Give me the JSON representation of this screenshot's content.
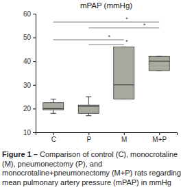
{
  "chart_data": {
    "type": "box",
    "title": "mPAP (mmHg)",
    "categories": [
      "C",
      "P",
      "M",
      "M+P"
    ],
    "min": [
      18,
      17,
      24,
      36
    ],
    "q1": [
      19.5,
      18,
      24,
      36
    ],
    "median": [
      20,
      21,
      30,
      40
    ],
    "q3": [
      22.5,
      21.5,
      46,
      42
    ],
    "max": [
      24,
      25,
      46,
      42
    ],
    "color": "#a8aaa0",
    "ylim": [
      10,
      60
    ],
    "yticks": [
      10,
      20,
      30,
      40,
      50,
      60
    ],
    "significance": [
      {
        "from": "C",
        "to": "M+P",
        "y": 56.5,
        "label": "*"
      },
      {
        "from": "P",
        "to": "M+P",
        "y": 54,
        "label": "*"
      },
      {
        "from": "C",
        "to": "M",
        "y": 49,
        "label": "*"
      },
      {
        "from": "P",
        "to": "M",
        "y": 47,
        "label": "*"
      }
    ],
    "caption": {
      "label": "Figure 1 –",
      "text": "Comparison of control (C), monocrotaline (M), pneumonectomy (P), and monocrotaline+pneumonectomy (M+P) rats regarding mean pulmonary artery pressure (mPAP) in mmHg"
    }
  }
}
